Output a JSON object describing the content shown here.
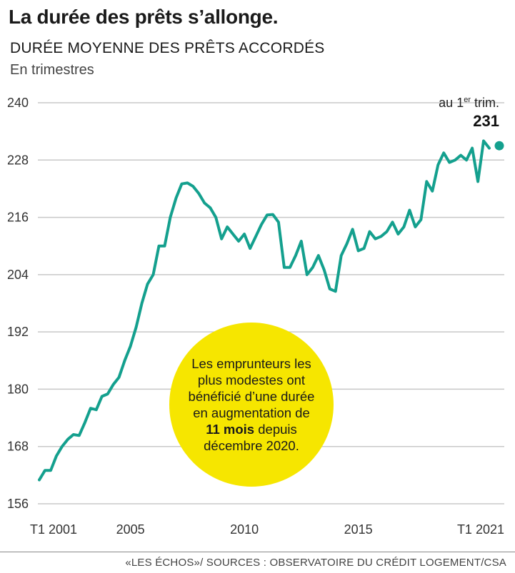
{
  "header": {
    "title": "La durée des prêts s’allonge.",
    "subtitle": "DURÉE MOYENNE DES PRÊTS ACCORDÉS",
    "unit": "En trimestres"
  },
  "annotation": {
    "prefix": "au 1",
    "sup": "er",
    "suffix": " trim.",
    "value": "231"
  },
  "callout": {
    "line1": "Les emprunteurs les plus modestes ont bénéficié d’une durée en augmentation de ",
    "bold": "11 mois",
    "line2": " depuis décembre 2020."
  },
  "source": "«LES ÉCHOS»/ SOURCES : OBSERVATOIRE DU CRÉDIT LOGEMENT/CSA",
  "colors": {
    "line": "#14a08e",
    "callout": "#f6e600",
    "grid": "#c8c8c8"
  },
  "chart_data": {
    "type": "line",
    "title": "DURÉE MOYENNE DES PRÊTS ACCORDÉS",
    "ylabel": "En trimestres",
    "xlabel": "",
    "ylim": [
      156,
      240
    ],
    "xlim": [
      2001.0,
      2021.0
    ],
    "yticks": [
      156,
      168,
      180,
      192,
      204,
      216,
      228,
      240
    ],
    "xticks": [
      {
        "label": "T1 2001",
        "x": 2001.0
      },
      {
        "label": "2005",
        "x": 2005.0
      },
      {
        "label": "2010",
        "x": 2010.0
      },
      {
        "label": "2015",
        "x": 2015.0
      },
      {
        "label": "T1 2021",
        "x": 2021.0
      }
    ],
    "grid": true,
    "series": [
      {
        "x": [
          2001.0,
          2001.25,
          2001.5,
          2001.75,
          2002.0,
          2002.25,
          2002.5,
          2002.75,
          2003.0,
          2003.25,
          2003.5,
          2003.75,
          2004.0,
          2004.25,
          2004.5,
          2004.75,
          2005.0,
          2005.25,
          2005.5,
          2005.75,
          2006.0,
          2006.25,
          2006.5,
          2006.75,
          2007.0,
          2007.25,
          2007.5,
          2007.75,
          2008.0,
          2008.25,
          2008.5,
          2008.75,
          2009.0,
          2009.25,
          2009.5,
          2009.75,
          2010.0,
          2010.25,
          2010.5,
          2010.75,
          2011.0,
          2011.25,
          2011.5,
          2011.75,
          2012.0,
          2012.25,
          2012.5,
          2012.75,
          2013.0,
          2013.25,
          2013.5,
          2013.75,
          2014.0,
          2014.25,
          2014.5,
          2014.75,
          2015.0,
          2015.25,
          2015.5,
          2015.75,
          2016.0,
          2016.25,
          2016.5,
          2016.75,
          2017.0,
          2017.25,
          2017.5,
          2017.75,
          2018.0,
          2018.25,
          2018.5,
          2018.75,
          2019.0,
          2019.25,
          2019.5,
          2019.75,
          2020.0,
          2020.25,
          2020.5,
          2020.75,
          2021.0
        ],
        "values": [
          161,
          163,
          163,
          166,
          168,
          169.5,
          170.5,
          170.3,
          173,
          176,
          175.7,
          178.5,
          179,
          181,
          182.5,
          186,
          189,
          193,
          198,
          202,
          204,
          210,
          210,
          216,
          220,
          223,
          223.2,
          222.5,
          221,
          219,
          218,
          216,
          211.5,
          214,
          212.5,
          211,
          212.5,
          209.5,
          212,
          214.5,
          216.5,
          216.6,
          215,
          205.5,
          205.5,
          208,
          211,
          204,
          205.5,
          208,
          205,
          201,
          200.5,
          208,
          210.5,
          213.5,
          209,
          209.5,
          213,
          211.5,
          212,
          213,
          215,
          212.5,
          214,
          217.5,
          214,
          215.5,
          223.5,
          221.5,
          227,
          229.5,
          227.5,
          228,
          229,
          228,
          230.5,
          223.5,
          232,
          230.5,
          231
        ]
      }
    ]
  }
}
